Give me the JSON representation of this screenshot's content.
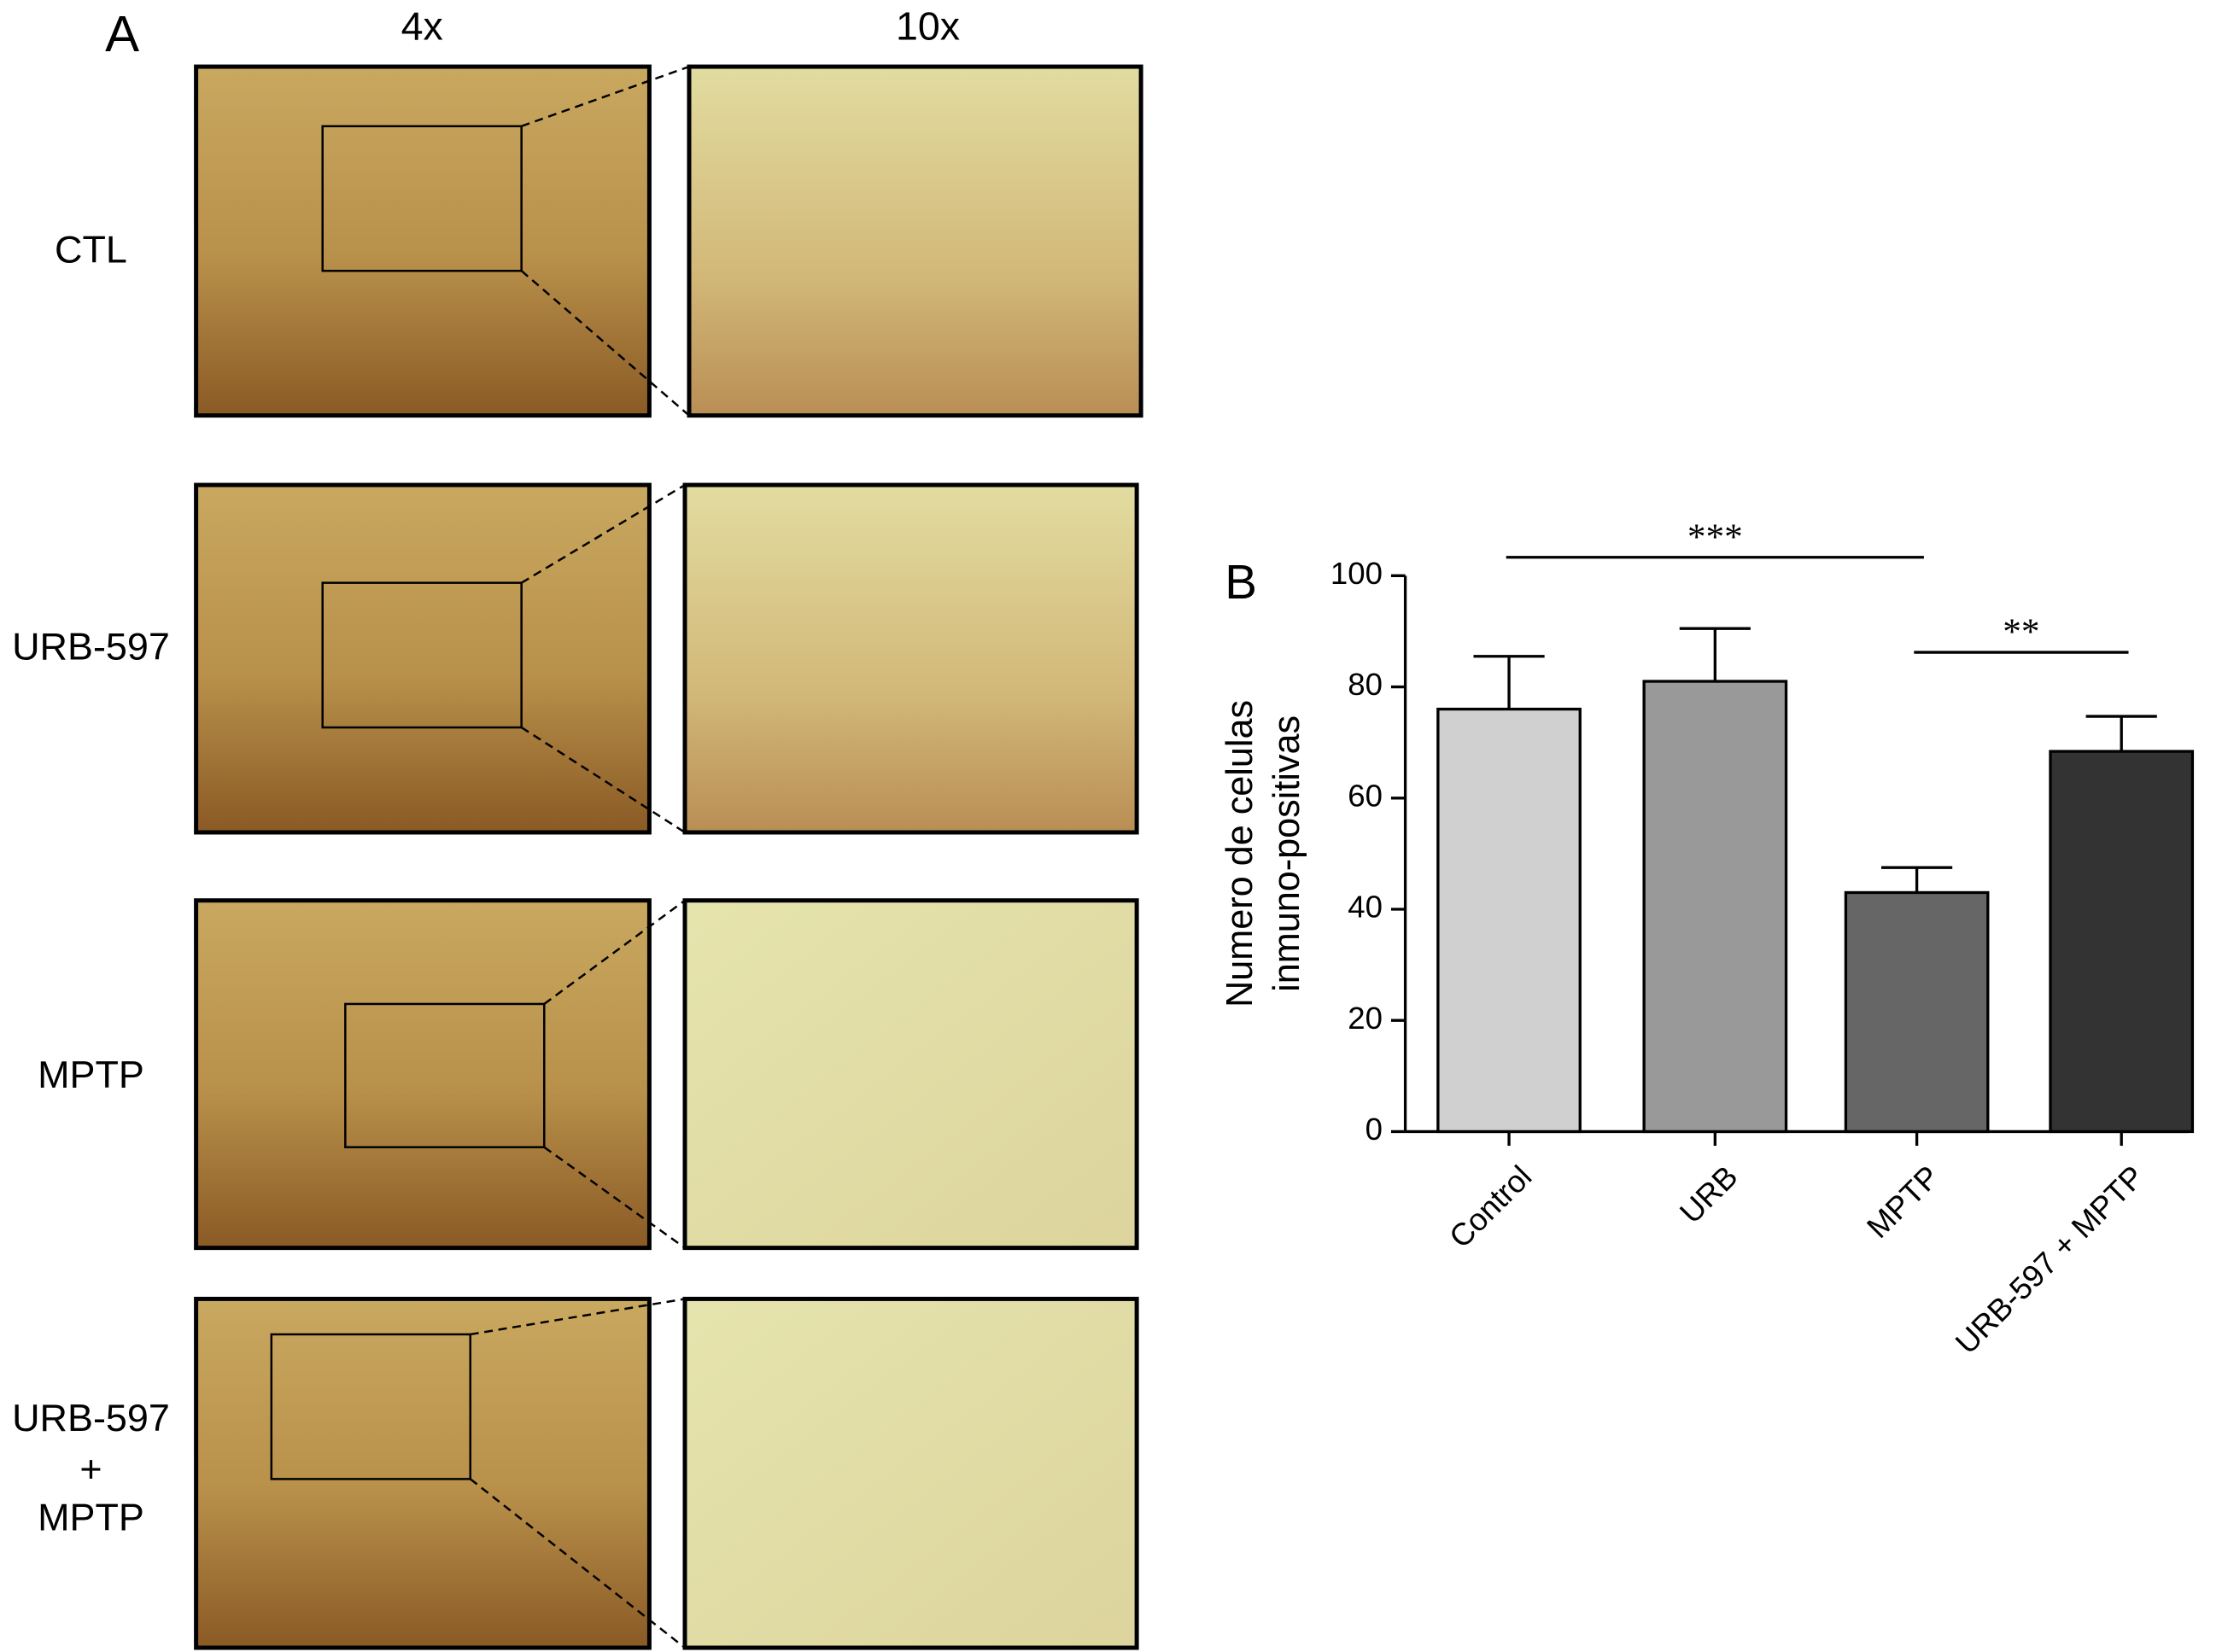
{
  "panel_a": {
    "label": "A",
    "columns": [
      "4x",
      "10x"
    ],
    "rows": [
      [
        "CTL"
      ],
      [
        "URB-597"
      ],
      [
        "MPTP"
      ],
      [
        "URB-597",
        "+",
        "MPTP"
      ]
    ]
  },
  "chart_data": {
    "type": "bar",
    "panel_label": "B",
    "y_label": [
      "Numero de celulas",
      "inmuno-positivas"
    ],
    "categories": [
      "Control",
      "URB",
      "MPTP",
      "URB-597 + MPTP"
    ],
    "values": [
      76,
      81,
      43,
      68.4
    ],
    "errors": [
      9.5,
      9.5,
      4.5,
      6.3
    ],
    "colors": [
      "#d0d0d0",
      "#999999",
      "#666666",
      "#333333"
    ],
    "ylim": [
      0,
      100
    ],
    "yticks": [
      0,
      20,
      40,
      60,
      80,
      100
    ],
    "annotations": [
      "***",
      "**"
    ]
  }
}
